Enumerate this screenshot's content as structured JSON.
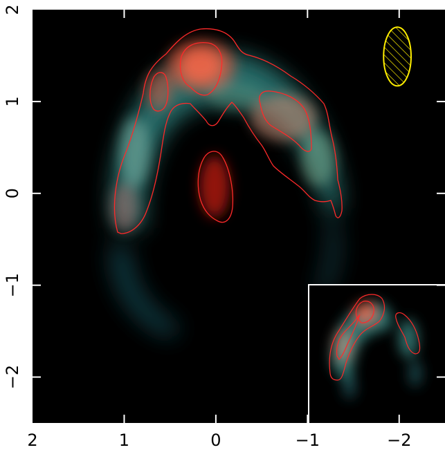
{
  "figure": {
    "x_tick_labels": [
      "2",
      "1",
      "0",
      "−1",
      "−2"
    ],
    "y_tick_labels": [
      "2",
      "1",
      "0",
      "−1",
      "−2"
    ],
    "x_tick_values": [
      2,
      1,
      0,
      -1,
      -2
    ],
    "y_tick_values": [
      2,
      1,
      0,
      -1,
      -2
    ],
    "x_range": [
      2.0,
      -2.5
    ],
    "y_range": [
      -2.5,
      2.0
    ],
    "colors": {
      "background": "#000000",
      "contour": "#ff2a2a",
      "beam": "#ffee00",
      "inset_border": "#ffffff",
      "emission_teal": "#4aa4a0",
      "emission_red": "#ff5a3c"
    },
    "beam_ellipse": {
      "center_x": -1.98,
      "center_y": 1.49,
      "semi_major": 0.32,
      "semi_minor": 0.15,
      "hatched": true
    },
    "inset": {
      "x_from": -1.0,
      "x_to": -2.5,
      "y_from": -2.5,
      "y_to": -1.0
    }
  }
}
